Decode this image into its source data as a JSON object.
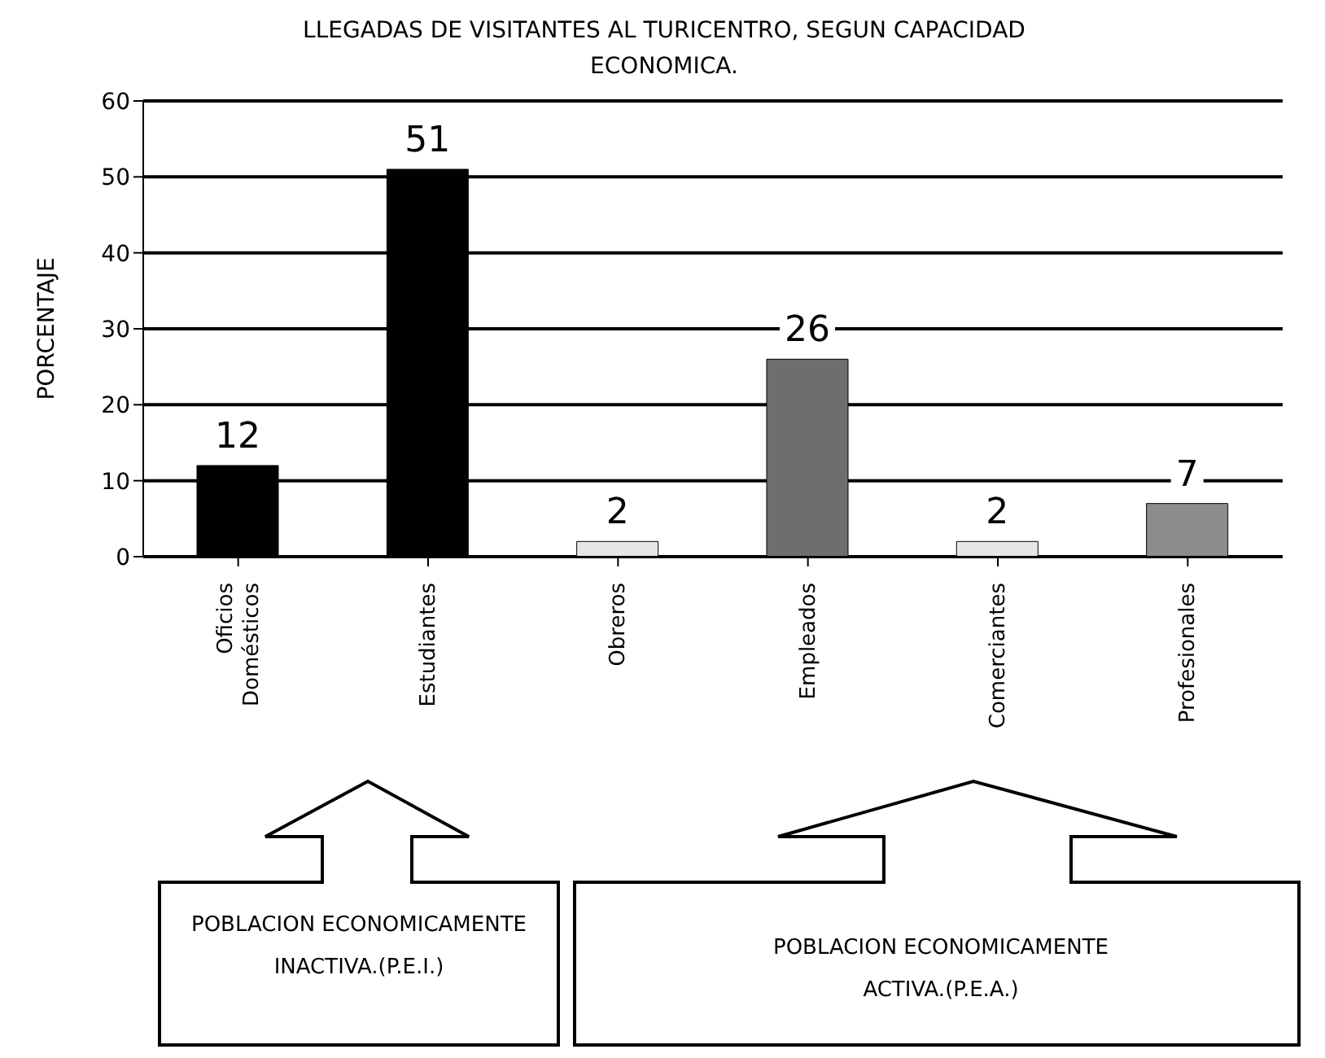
{
  "chart_data": {
    "type": "bar",
    "title": "LLEGADAS DE VISITANTES AL TURICENTRO, SEGUN CAPACIDAD ECONOMICA.",
    "ylabel": "PORCENTAJE",
    "categories": [
      "Oficios Domésticos",
      "Estudiantes",
      "Obreros",
      "Empleados",
      "Comerciantes",
      "Profesionales"
    ],
    "values": [
      12,
      51,
      2,
      26,
      2,
      7
    ],
    "colors": [
      "#000000",
      "#000000",
      "#e6e6e6",
      "#6e6e6e",
      "#e6e6e6",
      "#8c8c8c"
    ],
    "ylim": [
      0,
      60
    ],
    "yticks": [
      0,
      10,
      20,
      30,
      40,
      50,
      60
    ],
    "grid": "y",
    "data_labels": true,
    "annotations": [
      "POBLACION ECONOMICAMENTE INACTIVA.(P.E.I.)",
      "POBLACION ECONOMICAMENTE ACTIVA.(P.E.A.)"
    ]
  }
}
